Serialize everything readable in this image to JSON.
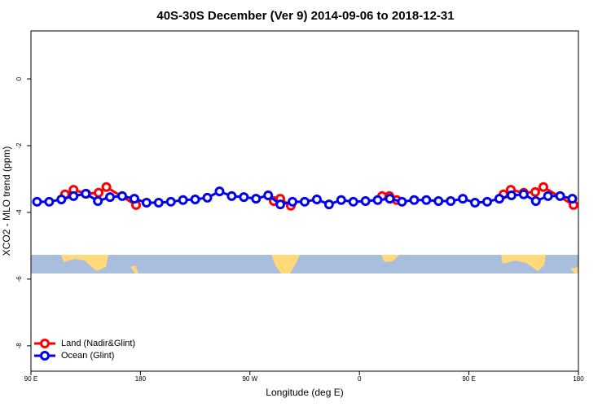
{
  "chart_data": {
    "type": "line",
    "title": "40S-30S December (Ver 9)   2014-09-06 to 2018-12-31",
    "xlabel": "Longitude (deg E)",
    "ylabel": "XCO2 - MLO trend (ppm)",
    "xlim": [
      90,
      540
    ],
    "ylim": [
      -8.76,
      1.44
    ],
    "xticks": [
      {
        "value": 90,
        "label": "90 E"
      },
      180,
      {
        "value": 270,
        "label": "90 W"
      },
      {
        "value": 360,
        "label": "0"
      },
      {
        "value": 450,
        "label": "90 E"
      },
      {
        "value": 540,
        "label": "180"
      }
    ],
    "yticks": [
      0,
      -2,
      -4,
      -6,
      -8
    ],
    "legend": "bottom-left",
    "series": [
      {
        "name": "Land (Nadir&Glint)",
        "color": "#ff0000",
        "x": [
          118,
          125,
          135.5,
          145.6,
          152,
          176.4,
          null,
          289.6,
          294.9,
          303.6,
          null,
          378.6,
          384.6,
          390.7,
          null,
          478.4,
          484.4,
          495.1,
          504.5,
          511.2,
          536
        ],
        "values": [
          -3.46,
          -3.32,
          -3.44,
          -3.41,
          -3.24,
          -3.78,
          null,
          -3.66,
          -3.59,
          -3.8,
          null,
          -3.51,
          -3.51,
          -3.63,
          null,
          -3.46,
          -3.32,
          -3.41,
          -3.39,
          -3.24,
          -3.78
        ]
      },
      {
        "name": "Ocean (Glint)",
        "color": "#0000ee",
        "x": [
          95,
          105,
          115,
          125,
          135,
          145,
          155,
          165,
          175,
          185,
          195,
          205,
          215,
          225,
          235,
          245,
          255,
          265,
          275,
          285,
          295,
          305,
          315,
          325,
          335,
          345,
          355,
          365,
          375,
          385,
          395,
          405,
          415,
          425,
          435,
          445,
          455,
          465,
          475,
          485,
          495,
          505,
          515,
          525,
          535
        ],
        "values": [
          -3.68,
          -3.68,
          -3.61,
          -3.51,
          -3.44,
          -3.66,
          -3.54,
          -3.51,
          -3.59,
          -3.71,
          -3.71,
          -3.68,
          -3.63,
          -3.61,
          -3.56,
          -3.37,
          -3.51,
          -3.54,
          -3.59,
          -3.49,
          -3.76,
          -3.68,
          -3.68,
          -3.61,
          -3.76,
          -3.63,
          -3.68,
          -3.66,
          -3.63,
          -3.59,
          -3.68,
          -3.63,
          -3.63,
          -3.66,
          -3.66,
          -3.59,
          -3.71,
          -3.68,
          -3.59,
          -3.49,
          -3.46,
          -3.66,
          -3.51,
          -3.51,
          -3.59
        ]
      }
    ]
  }
}
